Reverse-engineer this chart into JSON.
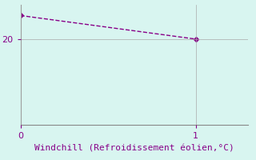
{
  "x": [
    0,
    1
  ],
  "y": [
    25.5,
    20
  ],
  "line_color": "#880088",
  "marker": "D",
  "marker_size": 3,
  "background_color": "#d8f5f0",
  "grid_color": "#aaaaaa",
  "xlabel": "Windchill (Refroidissement éolien,°C)",
  "xlabel_color": "#880088",
  "xlabel_fontsize": 8,
  "tick_color": "#880088",
  "tick_fontsize": 8,
  "xlim": [
    0,
    1.3
  ],
  "ylim": [
    0,
    28
  ],
  "yticks": [
    20
  ],
  "xticks": [
    0,
    1
  ],
  "spine_color": "#888888",
  "line_style": "--",
  "line_width": 1.0
}
